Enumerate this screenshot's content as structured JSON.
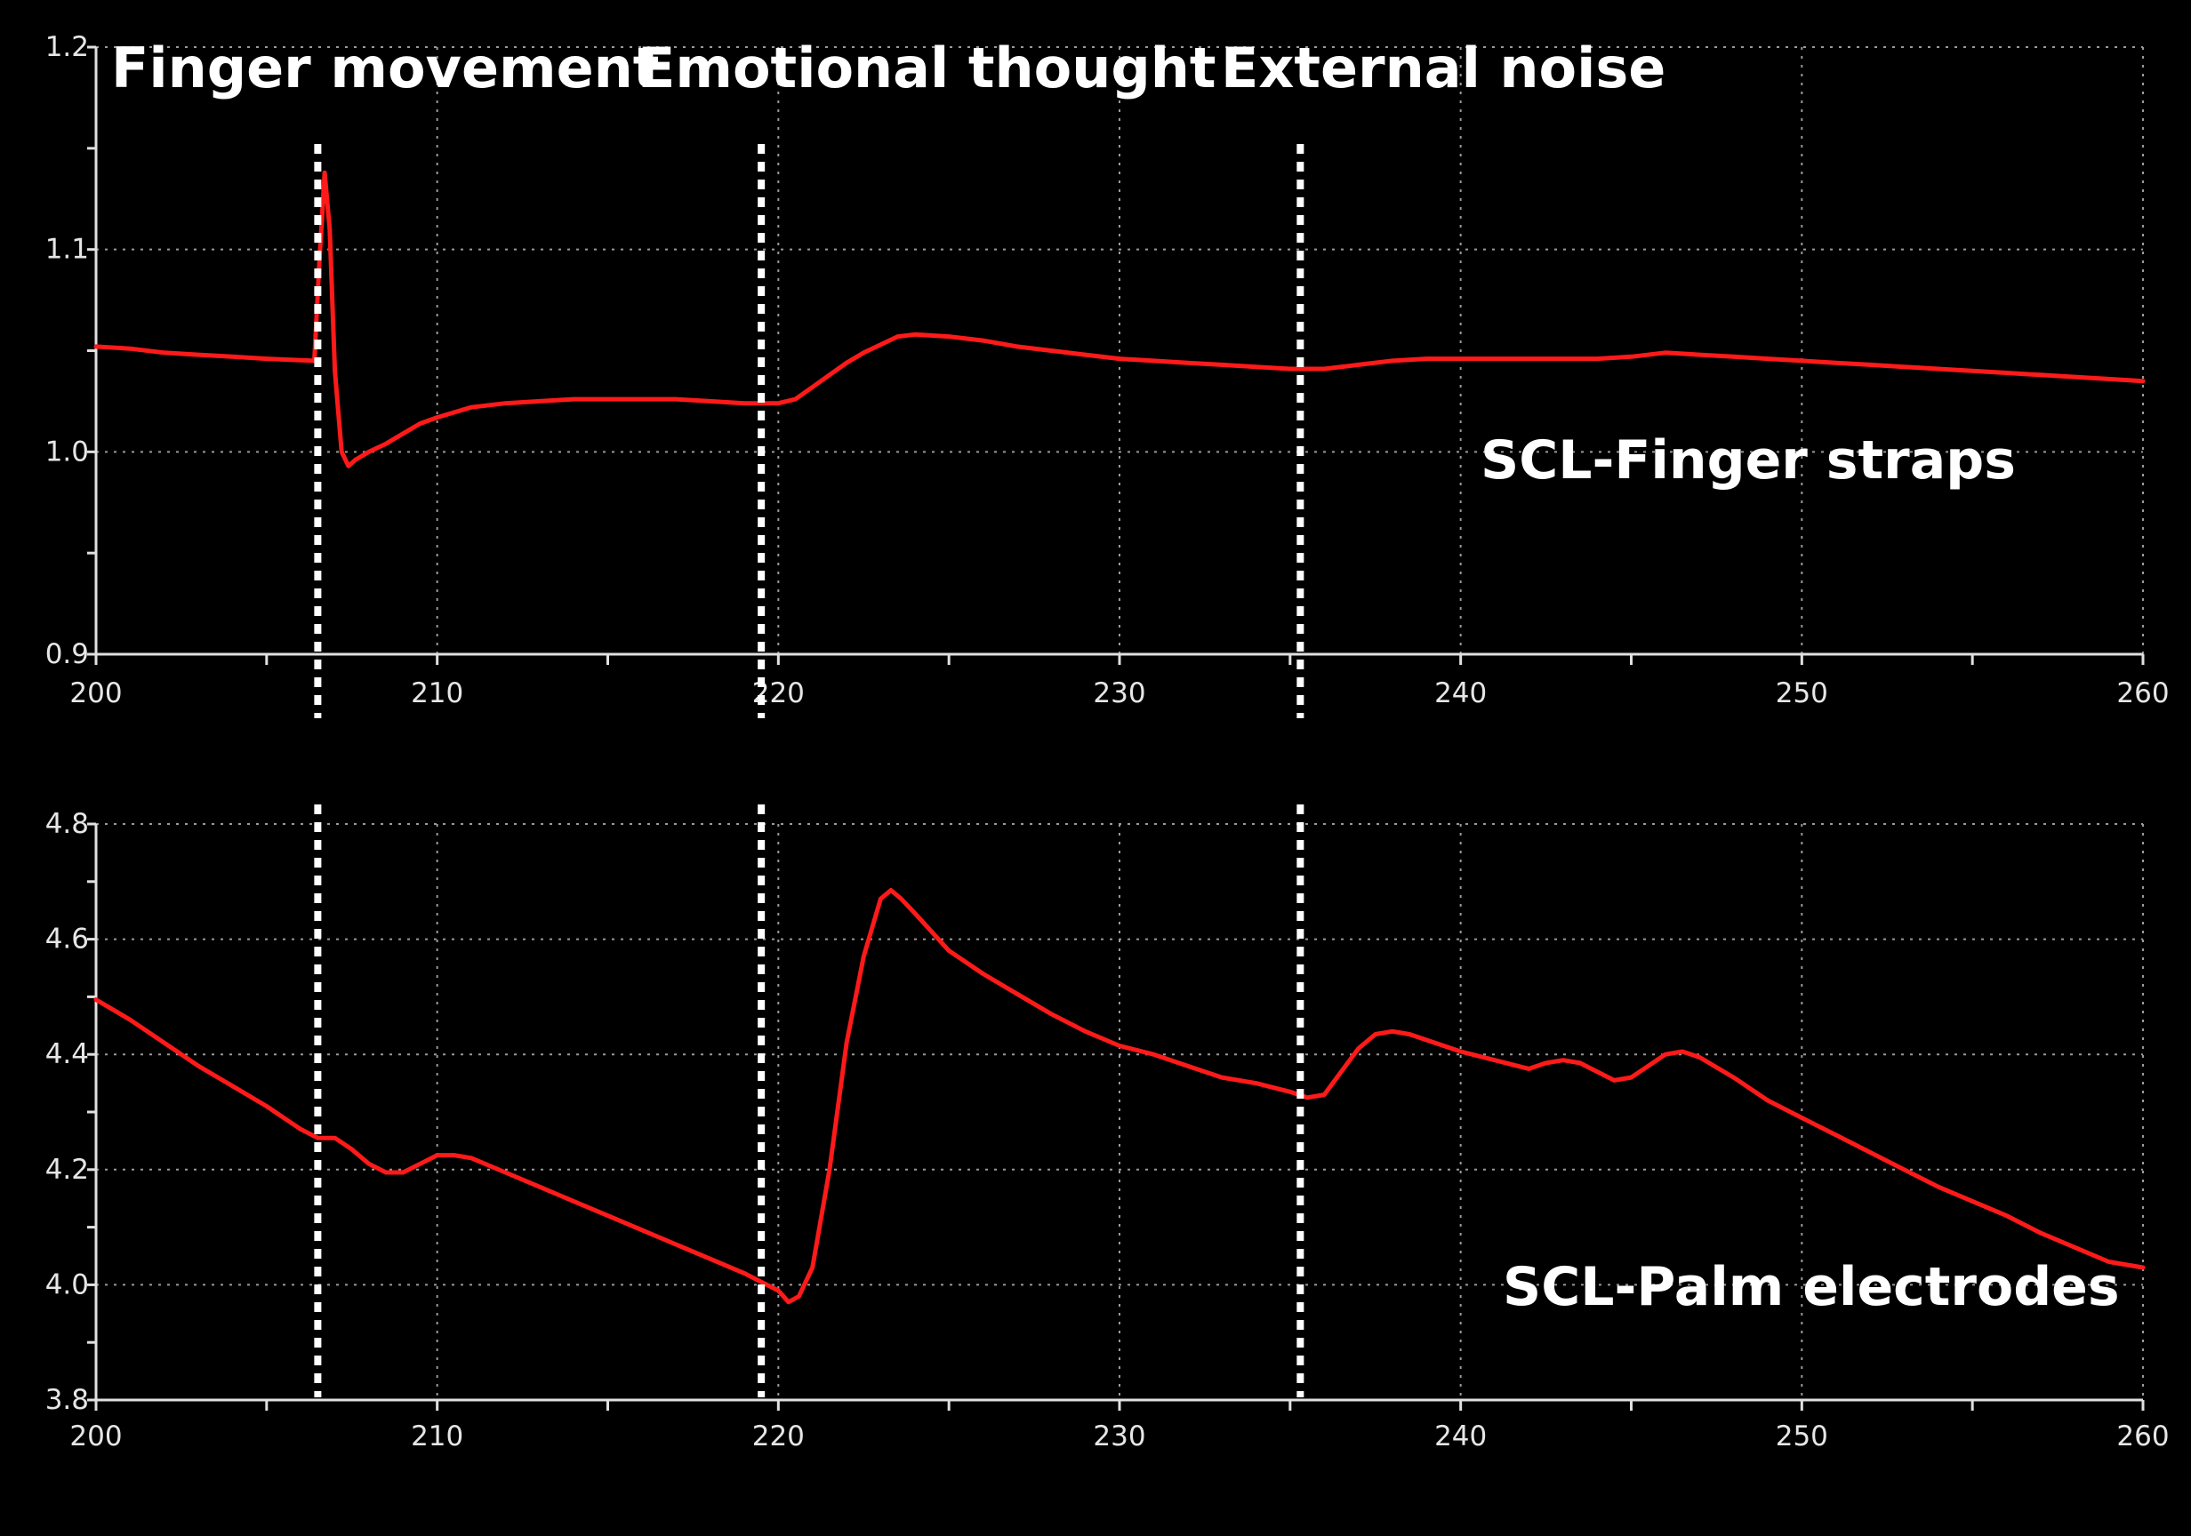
{
  "chart_data": [
    {
      "type": "line",
      "title": "SCL-Finger straps",
      "series_label": "SCL-Finger straps",
      "xlim": [
        200,
        260
      ],
      "ylim": [
        0.9,
        1.2
      ],
      "x_ticks": [
        "200",
        "210",
        "220",
        "230",
        "240",
        "250",
        "260"
      ],
      "y_ticks": [
        "0.9",
        "1.0",
        "1.1",
        "1.2"
      ],
      "grid": true,
      "line_color": "#ff1a1a",
      "series": [
        {
          "name": "SCL-Finger straps",
          "x": [
            200,
            201,
            202,
            203,
            204,
            205,
            206.4,
            206.55,
            206.7,
            206.85,
            207,
            207.2,
            207.4,
            207.6,
            208,
            208.5,
            209,
            209.5,
            210,
            211,
            212,
            213,
            214,
            215,
            216,
            217,
            218,
            219,
            220,
            220.5,
            221,
            221.5,
            222,
            222.5,
            223,
            223.5,
            224,
            225,
            226,
            227,
            228,
            229,
            230,
            231,
            232,
            233,
            234,
            235,
            236,
            237,
            238,
            239,
            240,
            241,
            242,
            243,
            244,
            245,
            246,
            247,
            248,
            249,
            250,
            251,
            252,
            253,
            254,
            255,
            256,
            257,
            258,
            259,
            260
          ],
          "y": [
            1.052,
            1.051,
            1.049,
            1.048,
            1.047,
            1.046,
            1.045,
            1.095,
            1.138,
            1.11,
            1.04,
            1.0,
            0.993,
            0.996,
            1.0,
            1.004,
            1.009,
            1.014,
            1.017,
            1.022,
            1.024,
            1.025,
            1.026,
            1.026,
            1.026,
            1.026,
            1.025,
            1.024,
            1.024,
            1.026,
            1.032,
            1.038,
            1.044,
            1.049,
            1.053,
            1.057,
            1.058,
            1.057,
            1.055,
            1.052,
            1.05,
            1.048,
            1.046,
            1.045,
            1.044,
            1.043,
            1.042,
            1.041,
            1.041,
            1.043,
            1.045,
            1.046,
            1.046,
            1.046,
            1.046,
            1.046,
            1.046,
            1.047,
            1.049,
            1.048,
            1.047,
            1.046,
            1.045,
            1.044,
            1.043,
            1.042,
            1.041,
            1.04,
            1.039,
            1.038,
            1.037,
            1.036,
            1.035
          ]
        }
      ]
    },
    {
      "type": "line",
      "title": "SCL-Palm electrodes",
      "series_label": "SCL-Palm electrodes",
      "xlim": [
        200,
        260
      ],
      "ylim": [
        3.8,
        4.8
      ],
      "x_ticks": [
        "200",
        "210",
        "220",
        "230",
        "240",
        "250",
        "260"
      ],
      "y_ticks": [
        "3.8",
        "4.0",
        "4.2",
        "4.4",
        "4.6",
        "4.8"
      ],
      "grid": true,
      "line_color": "#ff1a1a",
      "series": [
        {
          "name": "SCL-Palm electrodes",
          "x": [
            200,
            201,
            202,
            203,
            204,
            205,
            206,
            206.5,
            207,
            207.5,
            208,
            208.5,
            209,
            209.5,
            210,
            210.5,
            211,
            212,
            213,
            214,
            215,
            216,
            217,
            218,
            219,
            219.5,
            220,
            220.3,
            220.6,
            221,
            221.5,
            222,
            222.5,
            223,
            223.3,
            223.6,
            224,
            225,
            226,
            227,
            228,
            229,
            230,
            231,
            232,
            233,
            234,
            235,
            235.5,
            236,
            236.5,
            237,
            237.5,
            238,
            238.5,
            239,
            240,
            241,
            242,
            242.5,
            243,
            243.5,
            244,
            244.5,
            245,
            245.5,
            246,
            246.5,
            247,
            248,
            249,
            250,
            251,
            252,
            253,
            254,
            255,
            256,
            257,
            258,
            259,
            260
          ],
          "y": [
            4.495,
            4.46,
            4.42,
            4.38,
            4.345,
            4.31,
            4.27,
            4.255,
            4.255,
            4.235,
            4.21,
            4.195,
            4.195,
            4.21,
            4.225,
            4.225,
            4.22,
            4.195,
            4.17,
            4.145,
            4.12,
            4.095,
            4.07,
            4.045,
            4.02,
            4.005,
            3.99,
            3.97,
            3.98,
            4.03,
            4.2,
            4.42,
            4.57,
            4.67,
            4.685,
            4.67,
            4.645,
            4.58,
            4.54,
            4.505,
            4.47,
            4.44,
            4.415,
            4.4,
            4.38,
            4.36,
            4.35,
            4.335,
            4.325,
            4.33,
            4.37,
            4.41,
            4.435,
            4.44,
            4.435,
            4.425,
            4.405,
            4.39,
            4.375,
            4.385,
            4.39,
            4.385,
            4.37,
            4.355,
            4.36,
            4.38,
            4.4,
            4.405,
            4.395,
            4.36,
            4.32,
            4.29,
            4.26,
            4.23,
            4.2,
            4.17,
            4.145,
            4.12,
            4.09,
            4.065,
            4.04,
            4.03
          ]
        }
      ]
    }
  ],
  "events": [
    {
      "label": "Finger movement",
      "x": 206.5
    },
    {
      "label": "Emotional thought",
      "x": 219.5
    },
    {
      "label": "External noise",
      "x": 235.3
    }
  ]
}
